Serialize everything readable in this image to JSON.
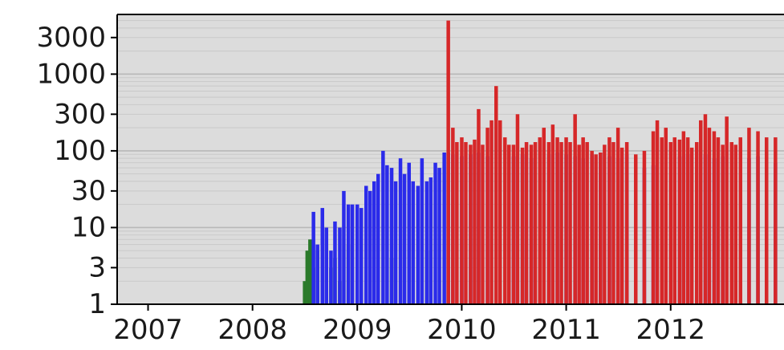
{
  "chart_data": {
    "type": "bar",
    "title": "",
    "xlabel": "",
    "ylabel": "",
    "y_scale": "log",
    "ylim": [
      1,
      6000
    ],
    "xlim": [
      "2006-09-15",
      "2013-01-31"
    ],
    "x_ticks": [
      "2007",
      "2008",
      "2009",
      "2010",
      "2011",
      "2012"
    ],
    "y_ticks": [
      "1",
      "3",
      "10",
      "30",
      "100",
      "300",
      "1000",
      "3000"
    ],
    "y_tick_values": [
      1,
      3,
      10,
      30,
      100,
      300,
      1000,
      3000
    ],
    "grid": "horizontal",
    "legend": "none",
    "background_color": "#dcdcdc",
    "series": [
      {
        "color": "#2b7a2b",
        "x": [
          "2008-07-01",
          "2008-07-10",
          "2008-07-20",
          "2008-08-01",
          "2008-08-15",
          "2008-09-01",
          "2008-09-15",
          "2008-10-01",
          "2008-10-15",
          "2008-11-01",
          "2008-12-01",
          "2009-01-15",
          "2009-03-01",
          "2009-05-01",
          "2009-07-01",
          "2009-09-01"
        ],
        "values": [
          2,
          5,
          7,
          3,
          5,
          4,
          8,
          3,
          4,
          2,
          6,
          8,
          5,
          4,
          6,
          5
        ]
      },
      {
        "color": "#2b2bea",
        "x": [
          "2008-08-01",
          "2008-08-15",
          "2008-09-01",
          "2008-09-15",
          "2008-10-01",
          "2008-10-15",
          "2008-11-01",
          "2008-11-15",
          "2008-12-01",
          "2008-12-15",
          "2009-01-01",
          "2009-01-15",
          "2009-02-01",
          "2009-02-15",
          "2009-03-01",
          "2009-03-15",
          "2009-04-01",
          "2009-04-15",
          "2009-05-01",
          "2009-05-15",
          "2009-06-01",
          "2009-06-15",
          "2009-07-01",
          "2009-07-15",
          "2009-08-01",
          "2009-08-15",
          "2009-09-01",
          "2009-09-15",
          "2009-10-01",
          "2009-10-15",
          "2009-11-01",
          "2009-11-15",
          "2009-12-01",
          "2010-01-01",
          "2010-02-01",
          "2010-03-01",
          "2010-04-01",
          "2010-05-01",
          "2010-06-01",
          "2010-07-01",
          "2010-08-01",
          "2010-09-01",
          "2010-10-01",
          "2010-11-01",
          "2010-12-01",
          "2011-01-01",
          "2011-02-01",
          "2011-03-01",
          "2011-04-01",
          "2011-05-01",
          "2011-06-01",
          "2011-07-01",
          "2011-08-01",
          "2011-09-01",
          "2011-10-01",
          "2011-11-01",
          "2011-12-01",
          "2012-01-01",
          "2012-02-01",
          "2012-03-01",
          "2012-04-01",
          "2012-05-01",
          "2012-06-01",
          "2012-07-01",
          "2012-08-01",
          "2012-09-01",
          "2012-10-01",
          "2012-11-01",
          "2012-12-01",
          "2013-01-01"
        ],
        "values": [
          16,
          6,
          18,
          10,
          5,
          12,
          10,
          30,
          20,
          20,
          20,
          18,
          35,
          30,
          40,
          50,
          100,
          65,
          60,
          40,
          80,
          50,
          70,
          40,
          35,
          80,
          40,
          45,
          70,
          60,
          95,
          95,
          90,
          85,
          90,
          95,
          85,
          90,
          80,
          85,
          90,
          80,
          85,
          90,
          95,
          90,
          85,
          80,
          90,
          95,
          85,
          80,
          90,
          70,
          60,
          65,
          70,
          80,
          85,
          90,
          85,
          90,
          80,
          85,
          90,
          85,
          80,
          85,
          75,
          70
        ]
      },
      {
        "color": "#d62728",
        "x": [
          "2009-11-15",
          "2009-12-01",
          "2009-12-15",
          "2010-01-01",
          "2010-01-15",
          "2010-02-01",
          "2010-02-15",
          "2010-03-01",
          "2010-03-15",
          "2010-04-01",
          "2010-04-15",
          "2010-05-01",
          "2010-05-15",
          "2010-06-01",
          "2010-06-15",
          "2010-07-01",
          "2010-07-15",
          "2010-08-01",
          "2010-08-15",
          "2010-09-01",
          "2010-09-15",
          "2010-10-01",
          "2010-10-15",
          "2010-11-01",
          "2010-11-15",
          "2010-12-01",
          "2010-12-15",
          "2011-01-01",
          "2011-01-15",
          "2011-02-01",
          "2011-02-15",
          "2011-03-01",
          "2011-03-15",
          "2011-04-01",
          "2011-04-15",
          "2011-05-01",
          "2011-05-15",
          "2011-06-01",
          "2011-06-15",
          "2011-07-01",
          "2011-07-15",
          "2011-08-01",
          "2011-09-01",
          "2011-10-01",
          "2011-11-01",
          "2011-11-15",
          "2011-12-01",
          "2011-12-15",
          "2012-01-01",
          "2012-01-15",
          "2012-02-01",
          "2012-02-15",
          "2012-03-01",
          "2012-03-15",
          "2012-04-01",
          "2012-04-15",
          "2012-05-01",
          "2012-05-15",
          "2012-06-01",
          "2012-06-15",
          "2012-07-01",
          "2012-07-15",
          "2012-08-01",
          "2012-08-15",
          "2012-09-01",
          "2012-10-01",
          "2012-11-01",
          "2012-12-01",
          "2013-01-01"
        ],
        "values": [
          5000,
          200,
          130,
          150,
          130,
          120,
          140,
          350,
          120,
          200,
          250,
          700,
          250,
          150,
          120,
          120,
          300,
          110,
          130,
          120,
          130,
          150,
          200,
          130,
          220,
          150,
          130,
          150,
          130,
          300,
          120,
          150,
          130,
          100,
          90,
          95,
          120,
          150,
          130,
          200,
          110,
          130,
          90,
          100,
          180,
          250,
          150,
          200,
          130,
          150,
          140,
          180,
          150,
          110,
          130,
          250,
          300,
          200,
          180,
          150,
          120,
          280,
          130,
          120,
          150,
          200,
          180,
          150,
          150
        ]
      }
    ]
  }
}
